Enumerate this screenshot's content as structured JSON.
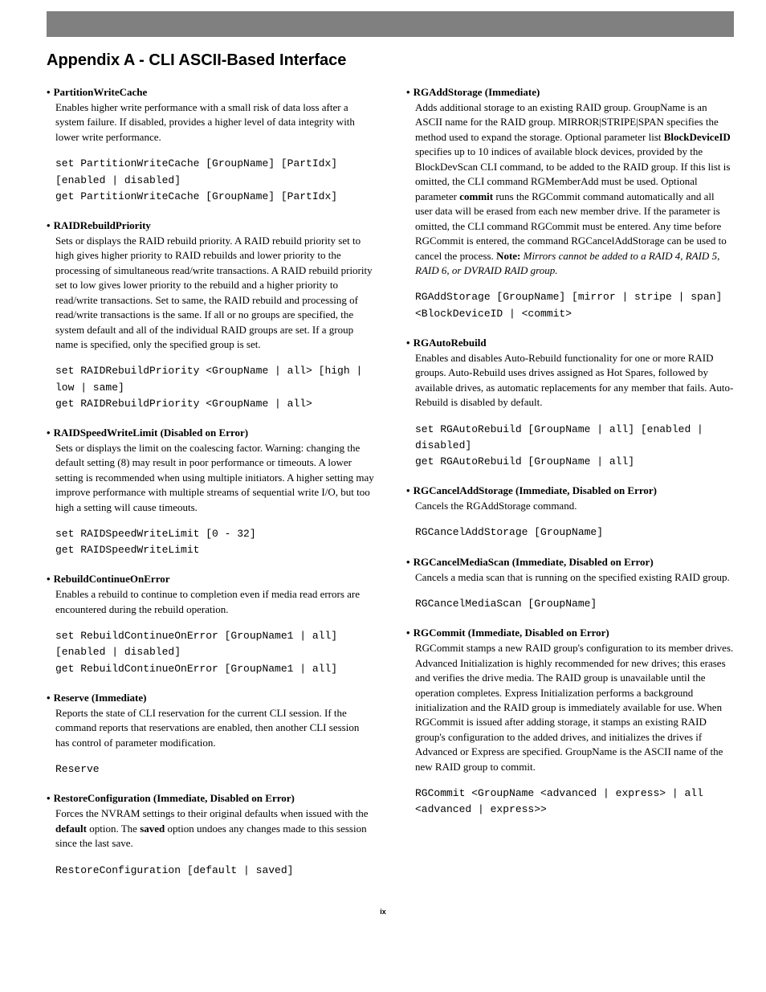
{
  "page_title": "Appendix A - CLI ASCII-Based Interface",
  "page_number": "ix",
  "left": [
    {
      "title": "PartitionWriteCache",
      "desc": "Enables higher write performance with a small risk of data loss after a system failure. If disabled, provides a higher level of data integrity with lower write performance.",
      "code": "set PartitionWriteCache [GroupName] [PartIdx] [enabled | disabled]\nget PartitionWriteCache [GroupName] [PartIdx]"
    },
    {
      "title": "RAIDRebuildPriority",
      "desc": "Sets or displays the RAID rebuild priority. A RAID rebuild priority set to high gives higher priority to RAID rebuilds and lower priority to the processing of simultaneous read/write transactions. A RAID rebuild priority set to low gives lower priority to the rebuild and a higher priority to read/write transactions. Set to same, the RAID rebuild and processing of read/write transactions is the same. If all or no groups are specified, the system default and all of the individual RAID groups are set. If a group name is specified, only the specified group is set.",
      "code": "set RAIDRebuildPriority <GroupName | all> [high | low | same]\nget RAIDRebuildPriority <GroupName | all>"
    },
    {
      "title": "RAIDSpeedWriteLimit (Disabled on Error)",
      "desc": "Sets or displays the limit on the coalescing factor. Warning: changing the default setting (8) may result in poor performance or timeouts. A lower setting is recommended when using multiple initiators. A higher setting may improve performance with multiple streams of sequential write I/O, but too high a setting will cause timeouts.",
      "code": "set RAIDSpeedWriteLimit [0 - 32]\nget RAIDSpeedWriteLimit"
    },
    {
      "title": "RebuildContinueOnError",
      "desc": "Enables a rebuild to continue to completion even if media read errors are encountered during the rebuild operation.",
      "code": "set RebuildContinueOnError [GroupName1 | all] [enabled | disabled]\nget RebuildContinueOnError [GroupName1 | all]"
    },
    {
      "title": "Reserve (Immediate)",
      "desc": "Reports the state of CLI reservation for the current CLI session. If the command reports that reservations are enabled, then another CLI session has control of parameter modification.",
      "code": "Reserve"
    },
    {
      "title": "RestoreConfiguration (Immediate, Disabled on Error)",
      "desc_html": "Forces the NVRAM settings to their original defaults when issued with the <b class=\"inline\">default</b> option. The <b class=\"inline\">saved</b> option undoes any changes made to this session since the last save.",
      "code": "RestoreConfiguration [default | saved]"
    }
  ],
  "right": [
    {
      "title": "RGAddStorage (Immediate)",
      "desc_html": "Adds additional storage to an existing RAID group. GroupName is an ASCII name for the RAID group. MIRROR|STRIPE|SPAN specifies the method used to expand the storage. Optional parameter list <b class=\"inline\">BlockDeviceID</b> specifies up to 10 indices of available block devices, provided by the BlockDevScan CLI command, to be added to the RAID group. If this list is omitted, the CLI command RGMemberAdd must be used. Optional parameter <b class=\"inline\">commit</b> runs the RGCommit command automatically and all user data will be erased from each new member drive. If the parameter is omitted, the CLI command RGCommit must be entered. Any time before RGCommit is entered, the command RGCancelAddStorage can be used to cancel the process. <span class=\"note-label\">Note:</span> <span class=\"note-italic\">Mirrors cannot be added to a RAID 4, RAID 5, RAID 6, or DVRAID RAID group.</span>",
      "code": "RGAddStorage [GroupName] [mirror | stripe | span] <BlockDeviceID | <commit>"
    },
    {
      "title": "RGAutoRebuild",
      "desc": "Enables and disables Auto-Rebuild functionality for one or more RAID groups. Auto-Rebuild uses drives assigned as Hot Spares, followed by available drives, as automatic replacements for any member that fails. Auto- Rebuild is disabled by default.",
      "code": "set RGAutoRebuild [GroupName | all] [enabled | disabled]\nget RGAutoRebuild [GroupName | all]"
    },
    {
      "title": "RGCancelAddStorage (Immediate, Disabled on Error)",
      "desc": "Cancels the RGAddStorage command.",
      "code": "RGCancelAddStorage [GroupName]"
    },
    {
      "title": "RGCancelMediaScan (Immediate, Disabled on Error)",
      "desc": "Cancels a media scan that is running on the specified existing RAID group.",
      "code": "RGCancelMediaScan [GroupName]"
    },
    {
      "title": "RGCommit (Immediate, Disabled on Error)",
      "desc": "RGCommit stamps a new RAID group's configuration to its member drives. Advanced Initialization is highly recommended for new drives; this erases and verifies the drive media. The RAID group is unavailable until the operation completes. Express Initialization performs a background initialization and the RAID group is immediately available for use. When RGCommit is issued after adding storage, it stamps an existing RAID group's configuration to the added drives, and initializes the drives if Advanced or Express are specified. GroupName is the ASCII name of the new RAID group to commit.",
      "code": "RGCommit <GroupName <advanced | express> | all <advanced | express>>"
    }
  ]
}
